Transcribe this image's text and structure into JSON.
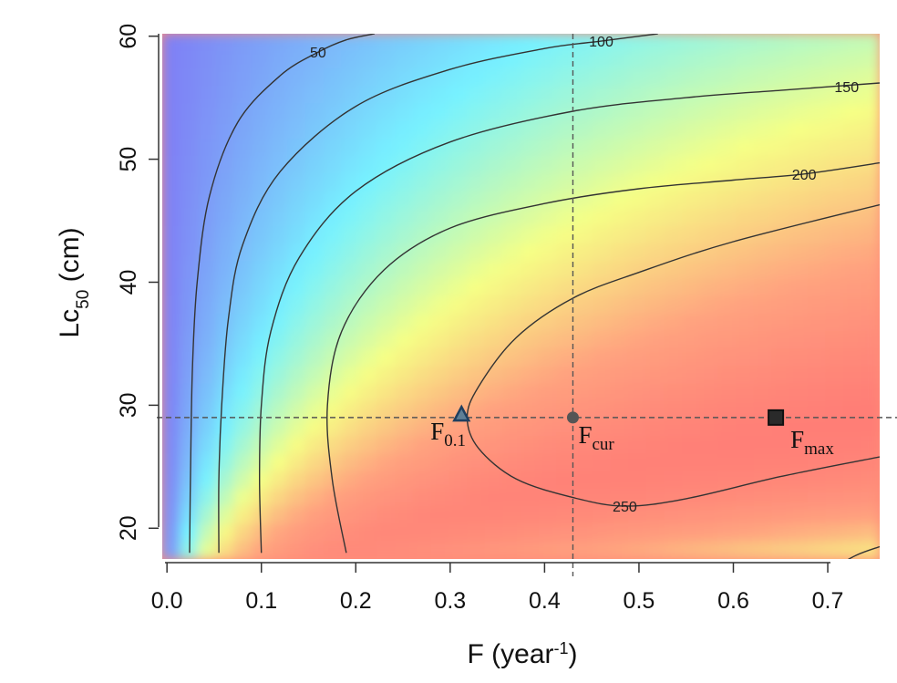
{
  "chart_data": {
    "type": "heatmap",
    "title": "",
    "xlabel": "F (year",
    "xlabel_sup": "-1",
    "xlabel_close": ")",
    "ylabel": "Lc",
    "ylabel_sub": "50",
    "ylabel_units": " (cm)",
    "xlim": [
      -0.005,
      0.755
    ],
    "ylim": [
      17.5,
      60.2
    ],
    "x_ticks": [
      0.0,
      0.1,
      0.2,
      0.3,
      0.4,
      0.5,
      0.6,
      0.7
    ],
    "x_tick_labels": [
      "0.0",
      "0.1",
      "0.2",
      "0.3",
      "0.4",
      "0.5",
      "0.6",
      "0.7"
    ],
    "y_ticks": [
      20,
      30,
      40,
      50,
      60
    ],
    "y_tick_labels": [
      "20",
      "30",
      "40",
      "50",
      "60"
    ],
    "color_scale": [
      "#7f7ff5",
      "#77f2ff",
      "#f6ff85",
      "#ffa27f",
      "#ff7474"
    ],
    "contours": [
      {
        "level": "50",
        "label_at": [
          0.16,
          58.7
        ],
        "points": [
          [
            0.024,
            18.0
          ],
          [
            0.025,
            25
          ],
          [
            0.027,
            33
          ],
          [
            0.032,
            40
          ],
          [
            0.045,
            47
          ],
          [
            0.075,
            53
          ],
          [
            0.12,
            56.8
          ],
          [
            0.16,
            58.7
          ],
          [
            0.19,
            59.7
          ],
          [
            0.22,
            60.2
          ]
        ]
      },
      {
        "level": "100",
        "label_at": [
          0.46,
          59.6
        ],
        "points": [
          [
            0.055,
            18.0
          ],
          [
            0.055,
            24
          ],
          [
            0.058,
            30
          ],
          [
            0.065,
            37
          ],
          [
            0.08,
            43
          ],
          [
            0.12,
            49
          ],
          [
            0.2,
            54.3
          ],
          [
            0.3,
            57.3
          ],
          [
            0.4,
            59.0
          ],
          [
            0.46,
            59.6
          ],
          [
            0.52,
            60.2
          ]
        ]
      },
      {
        "level": "150",
        "label_at": [
          0.72,
          55.9
        ],
        "points": [
          [
            0.1,
            18.0
          ],
          [
            0.098,
            24
          ],
          [
            0.1,
            30
          ],
          [
            0.11,
            36
          ],
          [
            0.14,
            42
          ],
          [
            0.2,
            47.4
          ],
          [
            0.3,
            51.4
          ],
          [
            0.43,
            53.9
          ],
          [
            0.55,
            55.0
          ],
          [
            0.65,
            55.6
          ],
          [
            0.755,
            56.2
          ]
        ]
      },
      {
        "level": "200",
        "label_at": [
          0.675,
          48.8
        ],
        "points": [
          [
            0.19,
            18.0
          ],
          [
            0.175,
            24
          ],
          [
            0.17,
            30
          ],
          [
            0.185,
            36
          ],
          [
            0.23,
            41
          ],
          [
            0.3,
            44.4
          ],
          [
            0.4,
            46.4
          ],
          [
            0.5,
            47.6
          ],
          [
            0.6,
            48.3
          ],
          [
            0.675,
            48.8
          ],
          [
            0.755,
            49.7
          ]
        ]
      },
      {
        "level": "250",
        "label_at": [
          0.485,
          21.8
        ],
        "points": [
          [
            0.755,
            46.3
          ],
          [
            0.6,
            43.3
          ],
          [
            0.5,
            40.8
          ],
          [
            0.43,
            38.7
          ],
          [
            0.37,
            35.5
          ],
          [
            0.33,
            31.5
          ],
          [
            0.318,
            29.0
          ],
          [
            0.33,
            26.5
          ],
          [
            0.37,
            24.0
          ],
          [
            0.43,
            22.5
          ],
          [
            0.485,
            21.8
          ],
          [
            0.55,
            22.4
          ],
          [
            0.65,
            24.2
          ],
          [
            0.755,
            25.8
          ]
        ]
      },
      {
        "level": "",
        "label_at": null,
        "points": [
          [
            0.7,
            16.5
          ],
          [
            0.73,
            17.8
          ],
          [
            0.755,
            18.5
          ]
        ]
      }
    ],
    "reference_lines": {
      "vertical_x": 0.43,
      "horizontal_y": 29.0
    },
    "points": [
      {
        "name": "F",
        "sub": "0.1",
        "x": 0.312,
        "y": 29.2,
        "marker": "triangle",
        "color": "#1f3f60"
      },
      {
        "name": "F",
        "sub": "cur",
        "x": 0.43,
        "y": 29.0,
        "marker": "circle",
        "color": "#555555"
      },
      {
        "name": "F",
        "sub": "max",
        "x": 0.645,
        "y": 29.0,
        "marker": "square",
        "color": "#111111"
      }
    ]
  }
}
